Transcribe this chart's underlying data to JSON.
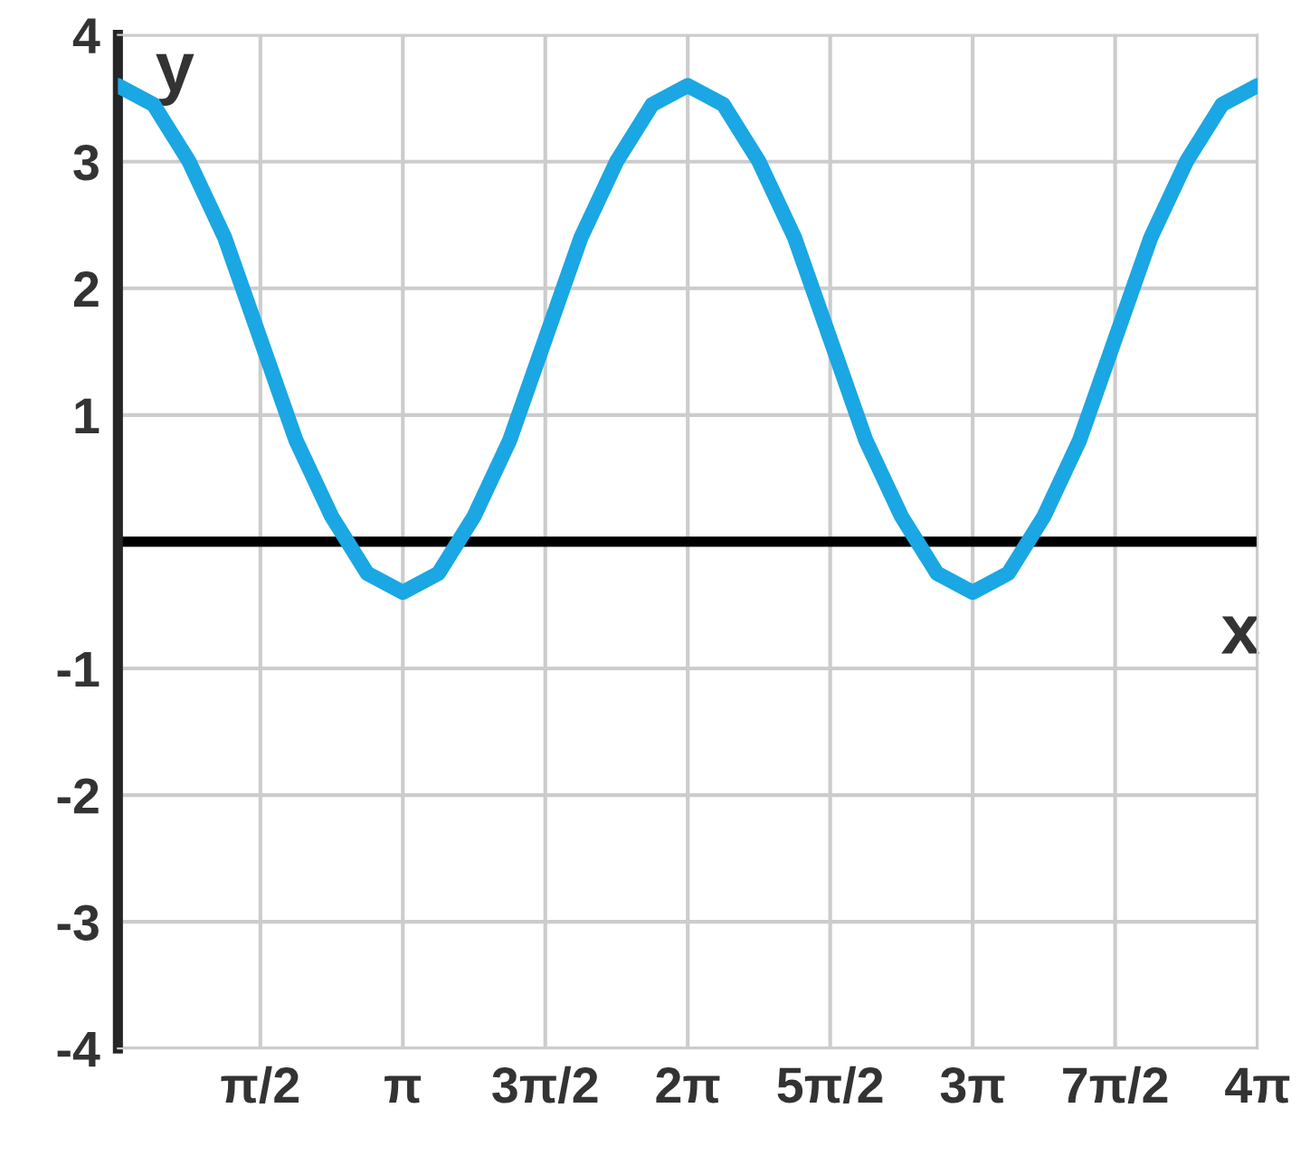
{
  "chart_data": {
    "type": "line",
    "xlabel": "x",
    "ylabel": "y",
    "x": [
      0,
      0.3927,
      0.7854,
      1.1781,
      1.5708,
      1.9635,
      2.3562,
      2.7489,
      3.1416,
      3.5343,
      3.927,
      4.3197,
      4.7124,
      5.1051,
      5.4978,
      5.8905,
      6.2832,
      6.6759,
      7.0686,
      7.4613,
      7.854,
      8.2467,
      8.6394,
      9.0321,
      9.4248,
      9.8175,
      10.2102,
      10.6029,
      10.9956,
      11.3883,
      11.781,
      12.1737,
      12.5664
    ],
    "series": [
      {
        "color": "#1aa7e4",
        "values": [
          3.6,
          3.45,
          3.0,
          2.4,
          1.6,
          0.8,
          0.2,
          -0.25,
          -0.4,
          -0.25,
          0.2,
          0.8,
          1.6,
          2.4,
          3.0,
          3.45,
          3.6,
          3.45,
          3.0,
          2.4,
          1.6,
          0.8,
          0.2,
          -0.25,
          -0.4,
          -0.25,
          0.2,
          0.8,
          1.6,
          2.4,
          3.0,
          3.45,
          3.6
        ]
      }
    ],
    "xlim": [
      0,
      12.5664
    ],
    "ylim": [
      -4,
      4
    ],
    "xticks": [
      {
        "value": 1.5708,
        "label": "π/2"
      },
      {
        "value": 3.1416,
        "label": "π"
      },
      {
        "value": 4.7124,
        "label": "3π/2"
      },
      {
        "value": 6.2832,
        "label": "2π"
      },
      {
        "value": 7.854,
        "label": "5π/2"
      },
      {
        "value": 9.4248,
        "label": "3π"
      },
      {
        "value": 10.9956,
        "label": "7π/2"
      },
      {
        "value": 12.5664,
        "label": "4π"
      }
    ],
    "yticks": [
      -4,
      -3,
      -2,
      -1,
      {
        "value": 0,
        "label": null
      },
      1,
      2,
      3,
      4
    ],
    "ref_lines": [
      {
        "axis": "y",
        "value": 0,
        "color": "#000000"
      }
    ],
    "grid": true,
    "legend": false,
    "marker": "none",
    "line_style": "solid"
  }
}
